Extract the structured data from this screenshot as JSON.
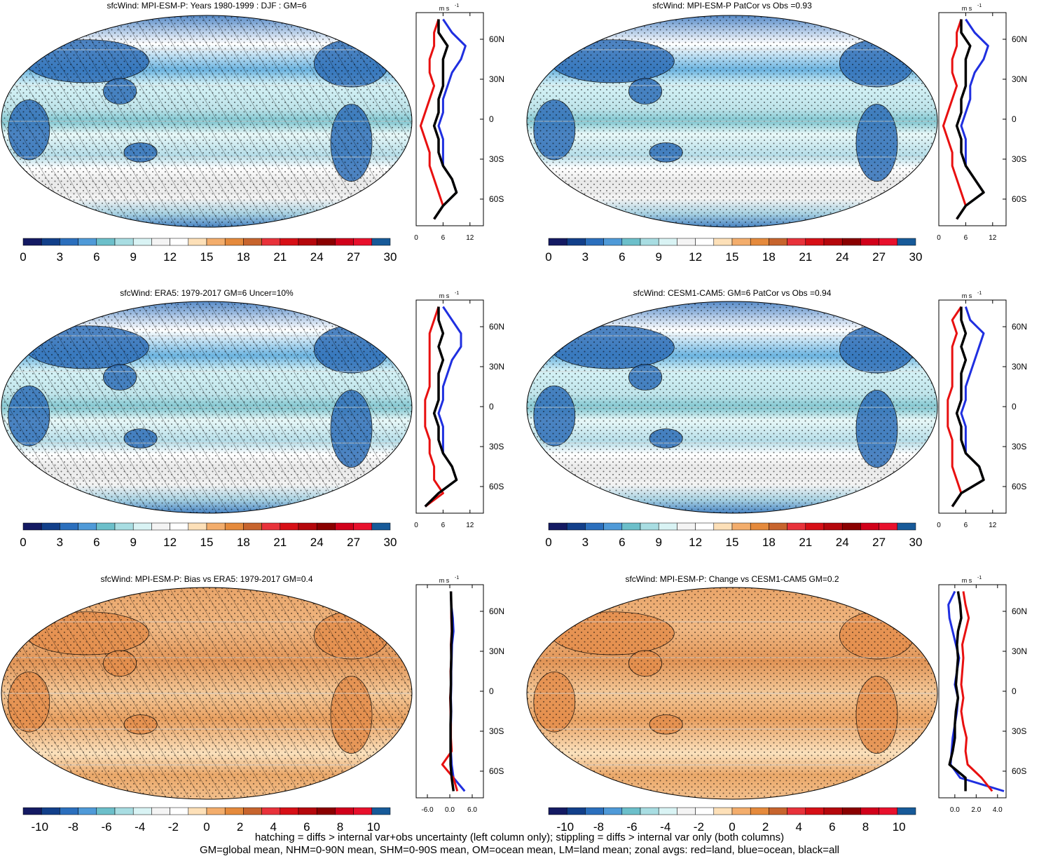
{
  "footer": {
    "line1": "hatching = diffs > internal var+obs uncertainty (left column only); stippling = diffs > internal var only (both columns)",
    "line2": "GM=global mean, NHM=0-90N mean, SHM=0-90S mean, OM=ocean mean, LM=land mean; zonal avgs: red=land, blue=ocean, black=all"
  },
  "chart_data": [
    {
      "type": "heatmap",
      "title": "sfcWind: MPI-ESM-P: Years 1980-1999 : DJF : GM=6",
      "field": "mean",
      "hatching": true,
      "stippling": true,
      "colorbar": {
        "ticks": [
          "0",
          "3",
          "6",
          "9",
          "12",
          "15",
          "18",
          "21",
          "24",
          "27",
          "30"
        ],
        "range": [
          0,
          30
        ]
      },
      "zonal": {
        "unit_label": "m s",
        "unit_exp": "-1",
        "xlim": [
          0,
          15
        ],
        "xticks": [
          "0",
          "6",
          "12"
        ],
        "ylim": [
          -80,
          80
        ],
        "yticks": [
          "60N",
          "30N",
          "0",
          "30S",
          "60S"
        ],
        "lat": [
          -75,
          -65,
          -55,
          -45,
          -35,
          -25,
          -15,
          -5,
          5,
          15,
          25,
          35,
          45,
          55,
          65,
          75
        ],
        "land": [
          4,
          6,
          5,
          4,
          3,
          3,
          2,
          1,
          2,
          3,
          4,
          3,
          3,
          4,
          4,
          5
        ],
        "ocean": [
          4,
          6,
          9,
          8,
          6,
          6,
          6,
          5,
          6,
          6,
          7,
          8,
          10,
          11,
          8,
          6
        ],
        "all": [
          4,
          6,
          9,
          8,
          6,
          5,
          5,
          4,
          5,
          5,
          6,
          6,
          6,
          7,
          5,
          5
        ]
      }
    },
    {
      "type": "heatmap",
      "title": "sfcWind: MPI-ESM-P PatCor vs Obs =0.93",
      "field": "mean",
      "hatching": false,
      "stippling": true,
      "colorbar": {
        "ticks": [
          "0",
          "3",
          "6",
          "9",
          "12",
          "15",
          "18",
          "21",
          "24",
          "27",
          "30"
        ],
        "range": [
          0,
          30
        ]
      },
      "zonal": {
        "unit_label": "m s",
        "unit_exp": "-1",
        "xlim": [
          0,
          15
        ],
        "xticks": [
          "0",
          "6",
          "12"
        ],
        "ylim": [
          -80,
          80
        ],
        "yticks": [
          "60N",
          "30N",
          "0",
          "30S",
          "60S"
        ],
        "lat": [
          -75,
          -65,
          -55,
          -45,
          -35,
          -25,
          -15,
          -5,
          5,
          15,
          25,
          35,
          45,
          55,
          65,
          75
        ],
        "land": [
          4,
          6,
          5,
          4,
          3,
          3,
          2,
          1,
          2,
          3,
          4,
          3,
          3,
          4,
          4,
          5
        ],
        "ocean": [
          4,
          6,
          10,
          8,
          6,
          6,
          6,
          5,
          6,
          7,
          7,
          8,
          10,
          11,
          8,
          6
        ],
        "all": [
          4,
          6,
          10,
          8,
          6,
          5,
          5,
          4,
          5,
          5,
          6,
          6,
          6,
          7,
          5,
          5
        ]
      }
    },
    {
      "type": "heatmap",
      "title": "sfcWind: ERA5: 1979-2017 GM=6 Uncer=10%",
      "field": "mean",
      "hatching": true,
      "stippling": true,
      "colorbar": {
        "ticks": [
          "0",
          "3",
          "6",
          "9",
          "12",
          "15",
          "18",
          "21",
          "24",
          "27",
          "30"
        ],
        "range": [
          0,
          30
        ]
      },
      "zonal": {
        "unit_label": "m s",
        "unit_exp": "-1",
        "xlim": [
          0,
          15
        ],
        "xticks": [
          "0",
          "6",
          "12"
        ],
        "ylim": [
          -80,
          80
        ],
        "yticks": [
          "60N",
          "30N",
          "0",
          "30S",
          "60S"
        ],
        "lat": [
          -75,
          -65,
          -55,
          -45,
          -35,
          -25,
          -15,
          -5,
          5,
          15,
          25,
          35,
          45,
          55,
          65,
          75
        ],
        "land": [
          2,
          6,
          4,
          4,
          3,
          3,
          2,
          2,
          2,
          3,
          3,
          3,
          3,
          3,
          4,
          5
        ],
        "ocean": [
          2,
          5,
          9,
          8,
          6,
          6,
          6,
          5,
          6,
          6,
          7,
          8,
          10,
          10,
          8,
          6
        ],
        "all": [
          2,
          5,
          9,
          8,
          6,
          5,
          5,
          4,
          5,
          5,
          5,
          6,
          5,
          6,
          5,
          5
        ]
      }
    },
    {
      "type": "heatmap",
      "title": "sfcWind: CESM1-CAM5: GM=6 PatCor vs Obs =0.94",
      "field": "mean",
      "hatching": false,
      "stippling": true,
      "colorbar": {
        "ticks": [
          "0",
          "3",
          "6",
          "9",
          "12",
          "15",
          "18",
          "21",
          "24",
          "27",
          "30"
        ],
        "range": [
          0,
          30
        ]
      },
      "zonal": {
        "unit_label": "m s",
        "unit_exp": "-1",
        "xlim": [
          0,
          15
        ],
        "xticks": [
          "0",
          "6",
          "12"
        ],
        "ylim": [
          -80,
          80
        ],
        "yticks": [
          "60N",
          "30N",
          "0",
          "30S",
          "60S"
        ],
        "lat": [
          -75,
          -65,
          -55,
          -45,
          -35,
          -25,
          -15,
          -5,
          5,
          15,
          25,
          35,
          45,
          55,
          65,
          75
        ],
        "land": [
          3,
          5,
          4,
          3,
          3,
          3,
          2,
          2,
          2,
          3,
          3,
          3,
          3,
          4,
          3,
          5
        ],
        "ocean": [
          3,
          5,
          10,
          9,
          6,
          6,
          6,
          5,
          6,
          6,
          7,
          8,
          9,
          10,
          7,
          6
        ],
        "all": [
          3,
          5,
          10,
          9,
          6,
          5,
          5,
          4,
          5,
          5,
          5,
          6,
          5,
          6,
          5,
          5
        ]
      }
    },
    {
      "type": "heatmap",
      "title": "sfcWind: MPI-ESM-P: Bias vs ERA5: 1979-2017 GM=0.4",
      "field": "diff",
      "hatching": true,
      "stippling": true,
      "colorbar": {
        "ticks": [
          "-10",
          "-8",
          "-6",
          "-4",
          "-2",
          "0",
          "2",
          "4",
          "6",
          "8",
          "10"
        ],
        "range": [
          -11,
          11
        ]
      },
      "zonal": {
        "unit_label": "m s",
        "unit_exp": "-1",
        "xlim": [
          -9,
          9
        ],
        "xticks": [
          "-6.0",
          "0.0",
          "6.0"
        ],
        "ylim": [
          -80,
          80
        ],
        "yticks": [
          "60N",
          "30N",
          "0",
          "30S",
          "60S"
        ],
        "lat": [
          -75,
          -65,
          -55,
          -45,
          -35,
          -25,
          -15,
          -5,
          5,
          15,
          25,
          35,
          45,
          55,
          65,
          75
        ],
        "land": [
          2,
          1,
          -2,
          0.5,
          0.3,
          0.3,
          0.2,
          0.1,
          0.3,
          0.2,
          0.4,
          0.3,
          0.5,
          0.4,
          0.4,
          0.3
        ],
        "ocean": [
          4,
          1,
          0.5,
          0.3,
          0.2,
          0.3,
          0.4,
          0.3,
          0.4,
          0.4,
          0.5,
          0.6,
          1,
          0.8,
          0.4,
          0.3
        ],
        "all": [
          1,
          0.5,
          0.2,
          0.2,
          0.2,
          0.2,
          0.3,
          0.2,
          0.3,
          0.3,
          0.4,
          0.4,
          0.6,
          0.5,
          0.4,
          0.3
        ]
      }
    },
    {
      "type": "heatmap",
      "title": "sfcWind: MPI-ESM-P: Change vs CESM1-CAM5 GM=0.2",
      "field": "diff",
      "hatching": false,
      "stippling": true,
      "colorbar": {
        "ticks": [
          "-10",
          "-8",
          "-6",
          "-4",
          "-2",
          "0",
          "2",
          "4",
          "6",
          "8",
          "10"
        ],
        "range": [
          -11,
          11
        ]
      },
      "zonal": {
        "unit_label": "m s",
        "unit_exp": "-1",
        "xlim": [
          -1.5,
          4.8
        ],
        "xticks": [
          "0.0",
          "2.0",
          "4.0"
        ],
        "ylim": [
          -80,
          80
        ],
        "yticks": [
          "60N",
          "30N",
          "0",
          "30S",
          "60S"
        ],
        "lat": [
          -75,
          -65,
          -55,
          -45,
          -35,
          -25,
          -15,
          -5,
          5,
          15,
          25,
          35,
          45,
          55,
          65,
          75
        ],
        "land": [
          3.5,
          2.5,
          1.2,
          1,
          1.1,
          0.8,
          0.6,
          0.8,
          0.6,
          0.7,
          0.8,
          0.7,
          1,
          1.3,
          1,
          0.8
        ],
        "ocean": [
          4.6,
          0.5,
          -0.4,
          -0.3,
          -0.2,
          0,
          0.2,
          0.3,
          0,
          0.2,
          0.4,
          0.1,
          -0.2,
          -0.5,
          -0.6,
          0
        ],
        "all": [
          1,
          1,
          -0.5,
          -0.2,
          0,
          0,
          0.1,
          0.3,
          0.1,
          0.2,
          0.3,
          0.2,
          0.3,
          0.6,
          0.5,
          0.3
        ]
      }
    }
  ]
}
